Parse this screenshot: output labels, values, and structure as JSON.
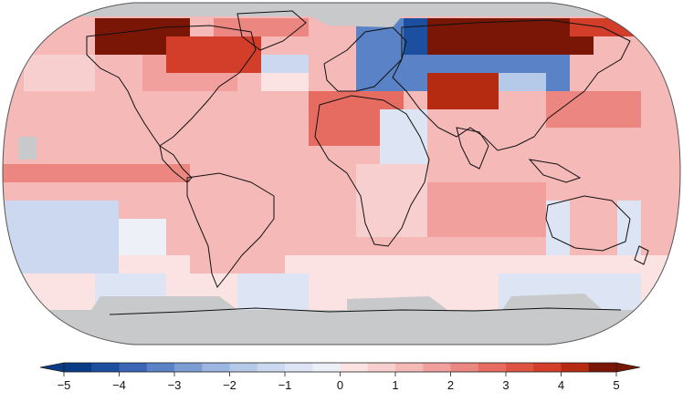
{
  "map": {
    "projection": "robinson",
    "ocean_ice_gray": "#c8c9ca",
    "coast_color": "#111111",
    "frame_color": "#444444",
    "anomaly_regions": [
      {
        "name": "arctic-canada-hot",
        "value": 5
      },
      {
        "name": "siberia-hot",
        "value": 5
      },
      {
        "name": "greenland-hot",
        "value": 4
      },
      {
        "name": "scandinavia-russia-cold",
        "value": -4
      },
      {
        "name": "central-asia-hot",
        "value": 4
      },
      {
        "name": "north-pacific-warm",
        "value": 2
      },
      {
        "name": "tropical-atlantic-warm",
        "value": 1
      },
      {
        "name": "southern-ocean-cool",
        "value": -1
      },
      {
        "name": "north-africa-warm",
        "value": 2
      },
      {
        "name": "east-pacific-cool",
        "value": -1
      }
    ]
  },
  "colorbar": {
    "ticks": [
      "−5",
      "−4",
      "−3",
      "−2",
      "−1",
      "0",
      "1",
      "2",
      "3",
      "4",
      "5"
    ],
    "min": -5,
    "max": 5,
    "bins": 20,
    "colors": {
      "cold_end": "#083a86",
      "neutral": "#f7f2f2",
      "hot_end": "#7a1606"
    }
  }
}
